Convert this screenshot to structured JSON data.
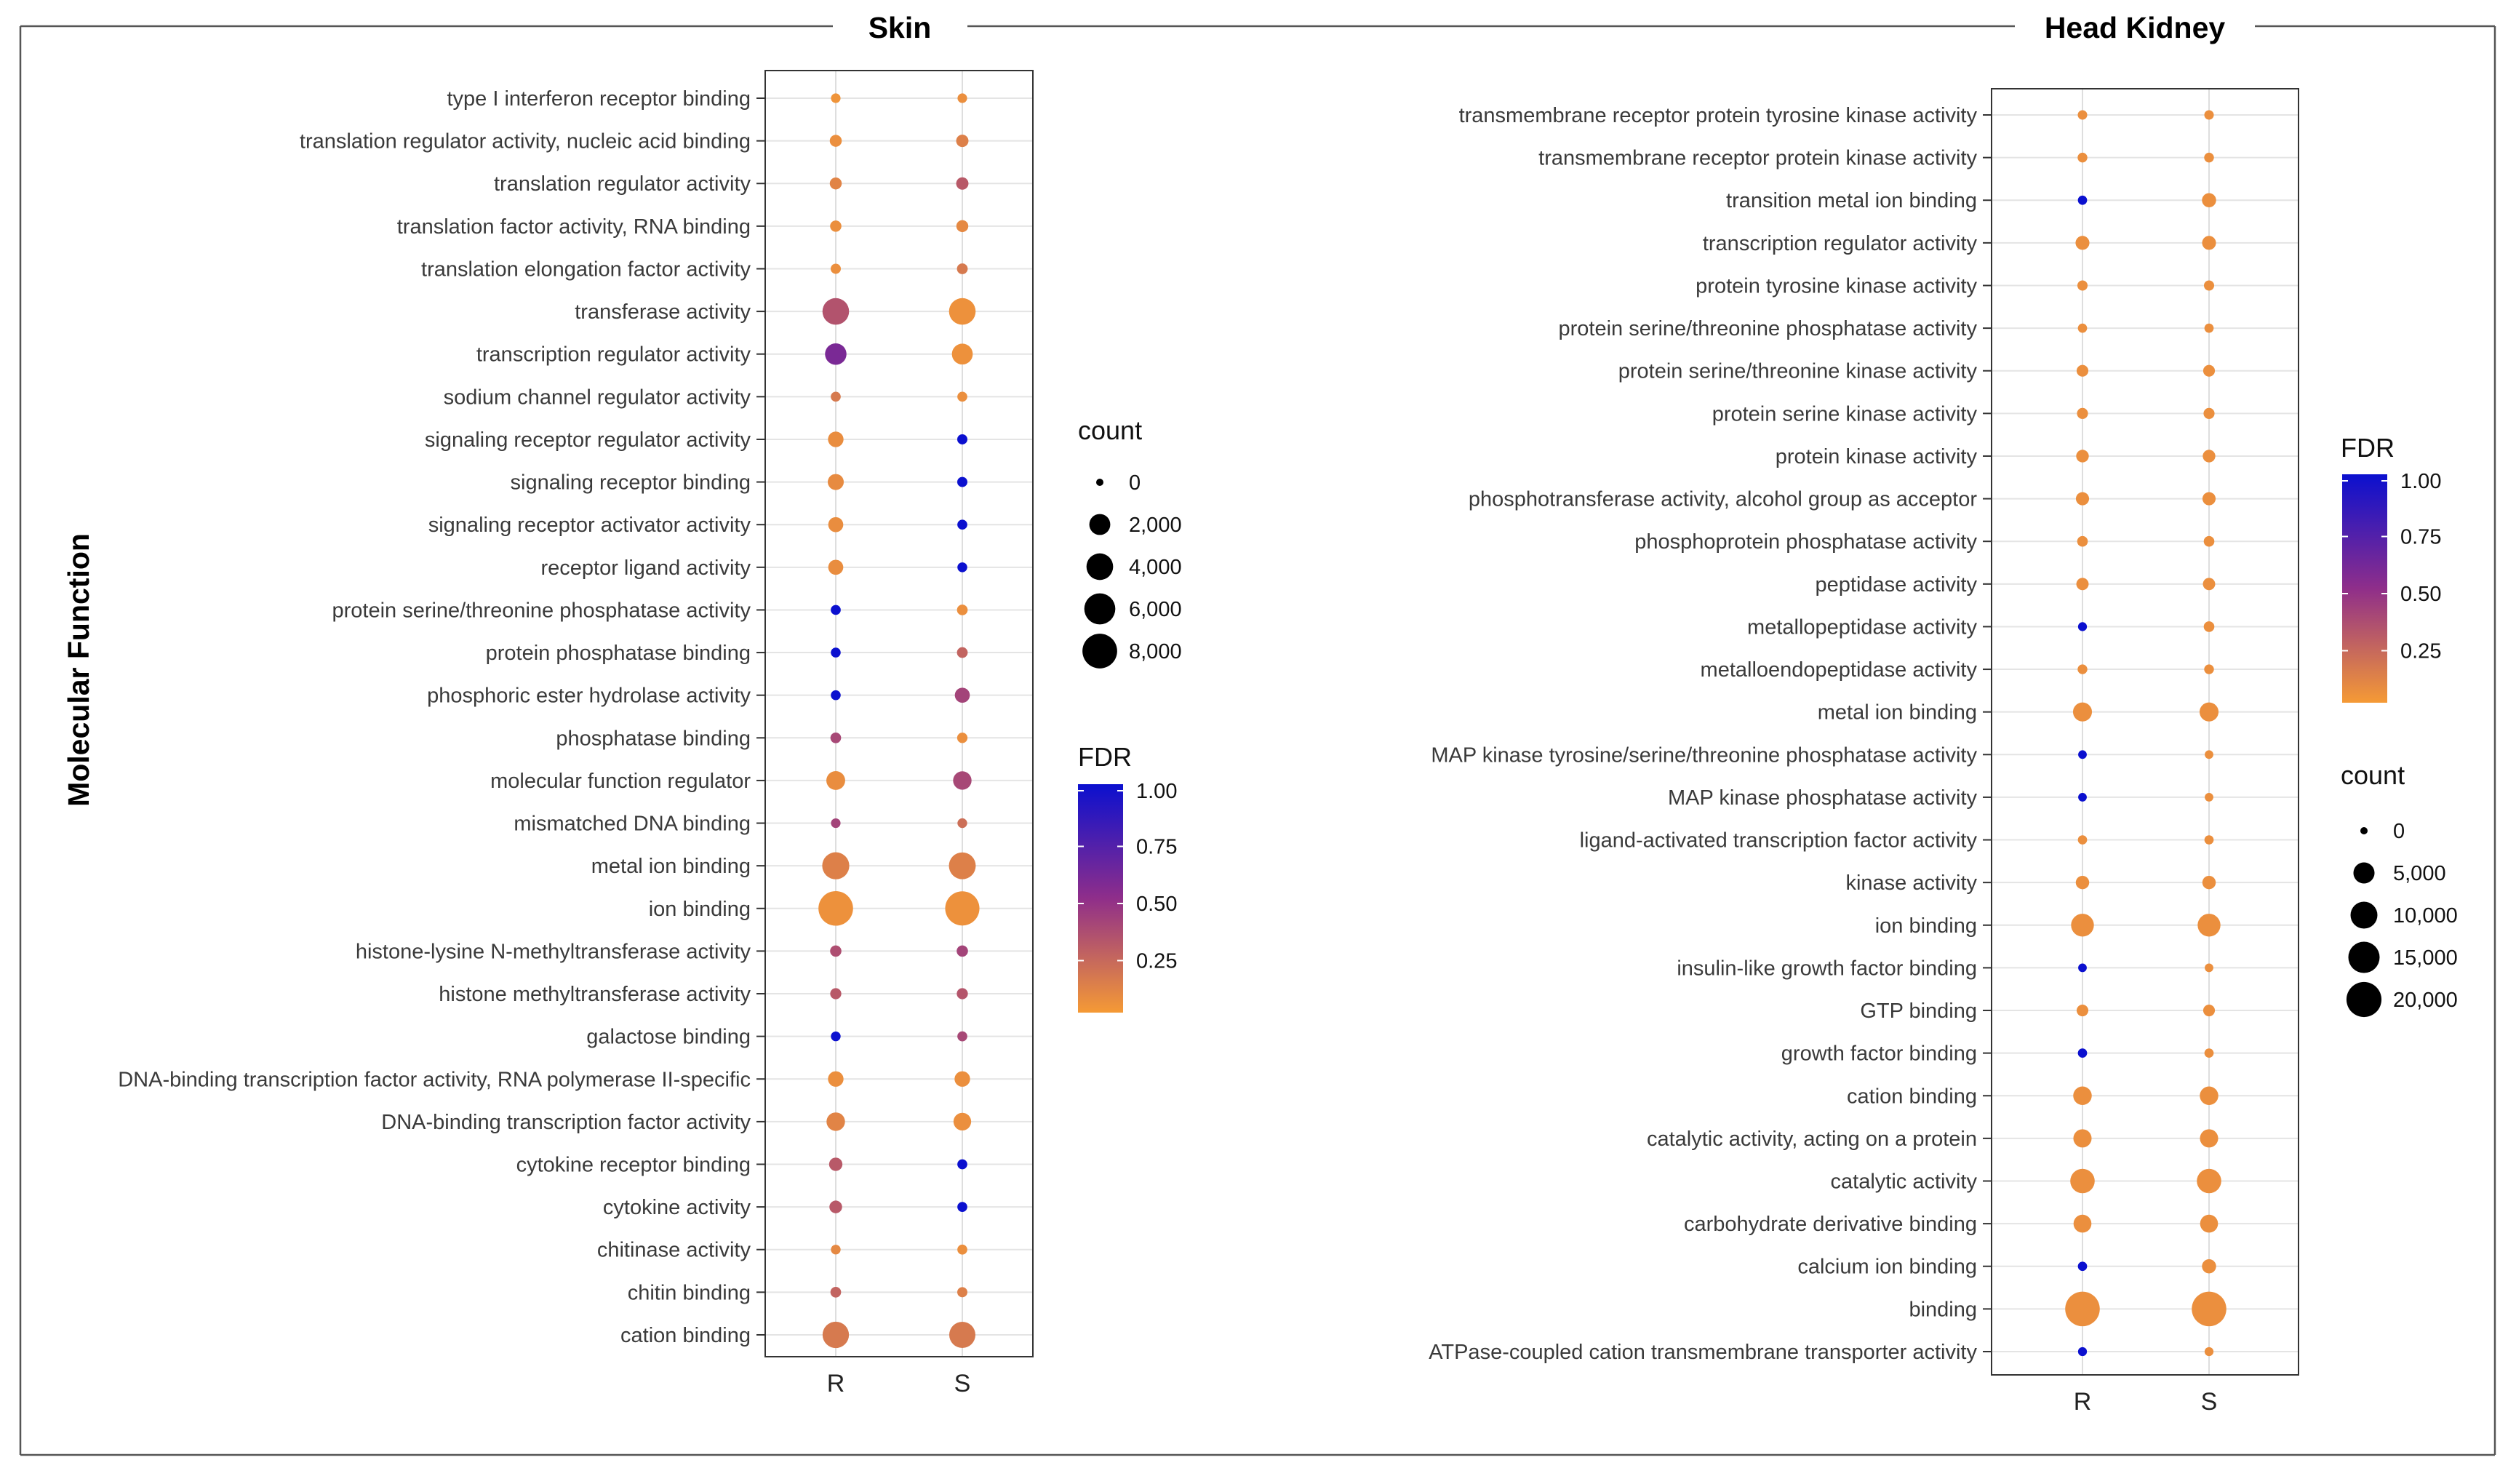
{
  "chart_data": [
    {
      "type": "scatter",
      "panel": "skin",
      "title": "Skin",
      "ylabel": "Molecular Function",
      "x": [
        "R",
        "S"
      ],
      "legend_count": {
        "title": "count",
        "labels": [
          "0",
          "2,000",
          "4,000",
          "6,000",
          "8,000"
        ],
        "values": [
          0,
          2000,
          4000,
          6000,
          8000
        ]
      },
      "legend_fdr": {
        "title": "FDR",
        "labels": [
          "1.00",
          "0.75",
          "0.50",
          "0.25"
        ],
        "values": [
          1.0,
          0.75,
          0.5,
          0.25
        ],
        "color_low": "#f59a35",
        "color_mid": "#8f2e8a",
        "color_high": "#0b10cf"
      },
      "terms": [
        {
          "term": "type I interferon receptor binding",
          "R": {
            "count": 150,
            "fdr": 0.03
          },
          "S": {
            "count": 150,
            "fdr": 0.05
          }
        },
        {
          "term": "translation regulator activity, nucleic acid binding",
          "R": {
            "count": 400,
            "fdr": 0.05
          },
          "S": {
            "count": 450,
            "fdr": 0.12
          }
        },
        {
          "term": "translation regulator activity",
          "R": {
            "count": 400,
            "fdr": 0.1
          },
          "S": {
            "count": 450,
            "fdr": 0.3
          }
        },
        {
          "term": "translation factor activity, RNA binding",
          "R": {
            "count": 320,
            "fdr": 0.05
          },
          "S": {
            "count": 400,
            "fdr": 0.08
          }
        },
        {
          "term": "translation elongation factor activity",
          "R": {
            "count": 200,
            "fdr": 0.05
          },
          "S": {
            "count": 260,
            "fdr": 0.15
          }
        },
        {
          "term": "transferase activity",
          "R": {
            "count": 4600,
            "fdr": 0.33
          },
          "S": {
            "count": 4600,
            "fdr": 0.04
          }
        },
        {
          "term": "transcription regulator activity",
          "R": {
            "count": 2600,
            "fdr": 0.58
          },
          "S": {
            "count": 2400,
            "fdr": 0.04
          }
        },
        {
          "term": "sodium channel regulator activity",
          "R": {
            "count": 180,
            "fdr": 0.15
          },
          "S": {
            "count": 180,
            "fdr": 0.05
          }
        },
        {
          "term": "signaling receptor regulator activity",
          "R": {
            "count": 1000,
            "fdr": 0.06
          },
          "S": {
            "count": 200,
            "fdr": 1.0
          }
        },
        {
          "term": "signaling receptor binding",
          "R": {
            "count": 1100,
            "fdr": 0.07
          },
          "S": {
            "count": 200,
            "fdr": 1.0
          }
        },
        {
          "term": "signaling receptor activator activity",
          "R": {
            "count": 900,
            "fdr": 0.06
          },
          "S": {
            "count": 180,
            "fdr": 1.0
          }
        },
        {
          "term": "receptor ligand activity",
          "R": {
            "count": 900,
            "fdr": 0.06
          },
          "S": {
            "count": 170,
            "fdr": 1.0
          }
        },
        {
          "term": "protein serine/threonine phosphatase activity",
          "R": {
            "count": 180,
            "fdr": 1.0
          },
          "S": {
            "count": 250,
            "fdr": 0.05
          }
        },
        {
          "term": "protein phosphatase binding",
          "R": {
            "count": 170,
            "fdr": 1.0
          },
          "S": {
            "count": 260,
            "fdr": 0.25
          }
        },
        {
          "term": "phosphoric ester hydrolase activity",
          "R": {
            "count": 170,
            "fdr": 1.0
          },
          "S": {
            "count": 900,
            "fdr": 0.4
          }
        },
        {
          "term": "phosphatase binding",
          "R": {
            "count": 250,
            "fdr": 0.38
          },
          "S": {
            "count": 220,
            "fdr": 0.05
          }
        },
        {
          "term": "molecular function regulator",
          "R": {
            "count": 1800,
            "fdr": 0.06
          },
          "S": {
            "count": 1700,
            "fdr": 0.38
          }
        },
        {
          "term": "mismatched DNA binding",
          "R": {
            "count": 150,
            "fdr": 0.4
          },
          "S": {
            "count": 160,
            "fdr": 0.2
          }
        },
        {
          "term": "metal ion binding",
          "R": {
            "count": 4800,
            "fdr": 0.12
          },
          "S": {
            "count": 4700,
            "fdr": 0.12
          }
        },
        {
          "term": "ion binding",
          "R": {
            "count": 8800,
            "fdr": 0.04
          },
          "S": {
            "count": 8600,
            "fdr": 0.04
          }
        },
        {
          "term": "histone-lysine N-methyltransferase activity",
          "R": {
            "count": 320,
            "fdr": 0.35
          },
          "S": {
            "count": 320,
            "fdr": 0.4
          }
        },
        {
          "term": "histone methyltransferase activity",
          "R": {
            "count": 300,
            "fdr": 0.3
          },
          "S": {
            "count": 300,
            "fdr": 0.32
          }
        },
        {
          "term": "galactose binding",
          "R": {
            "count": 160,
            "fdr": 1.0
          },
          "S": {
            "count": 180,
            "fdr": 0.38
          }
        },
        {
          "term": "DNA-binding transcription factor activity, RNA polymerase II-specific",
          "R": {
            "count": 1000,
            "fdr": 0.05
          },
          "S": {
            "count": 1000,
            "fdr": 0.05
          }
        },
        {
          "term": "DNA-binding transcription factor activity",
          "R": {
            "count": 1700,
            "fdr": 0.1
          },
          "S": {
            "count": 1500,
            "fdr": 0.05
          }
        },
        {
          "term": "cytokine receptor binding",
          "R": {
            "count": 600,
            "fdr": 0.3
          },
          "S": {
            "count": 180,
            "fdr": 1.0
          }
        },
        {
          "term": "cytokine activity",
          "R": {
            "count": 500,
            "fdr": 0.3
          },
          "S": {
            "count": 180,
            "fdr": 1.0
          }
        },
        {
          "term": "chitinase activity",
          "R": {
            "count": 160,
            "fdr": 0.08
          },
          "S": {
            "count": 180,
            "fdr": 0.05
          }
        },
        {
          "term": "chitin binding",
          "R": {
            "count": 250,
            "fdr": 0.25
          },
          "S": {
            "count": 200,
            "fdr": 0.12
          }
        },
        {
          "term": "cation binding",
          "R": {
            "count": 4500,
            "fdr": 0.15
          },
          "S": {
            "count": 4400,
            "fdr": 0.15
          }
        }
      ]
    },
    {
      "type": "scatter",
      "panel": "head-kidney",
      "title": "Head Kidney",
      "x": [
        "R",
        "S"
      ],
      "legend_fdr": {
        "title": "FDR",
        "labels": [
          "1.00",
          "0.75",
          "0.50",
          "0.25"
        ],
        "values": [
          1.0,
          0.75,
          0.5,
          0.25
        ],
        "color_low": "#f59a35",
        "color_mid": "#8f2e8a",
        "color_high": "#0b10cf"
      },
      "legend_count": {
        "title": "count",
        "labels": [
          "0",
          "5,000",
          "10,000",
          "15,000",
          "20,000"
        ],
        "values": [
          0,
          5000,
          10000,
          15000,
          20000
        ]
      },
      "terms": [
        {
          "term": "transmembrane receptor protein tyrosine kinase activity",
          "R": {
            "count": 350,
            "fdr": 0.05
          },
          "S": {
            "count": 350,
            "fdr": 0.05
          }
        },
        {
          "term": "transmembrane receptor protein kinase activity",
          "R": {
            "count": 400,
            "fdr": 0.05
          },
          "S": {
            "count": 400,
            "fdr": 0.05
          }
        },
        {
          "term": "transition metal ion binding",
          "R": {
            "count": 300,
            "fdr": 1.0
          },
          "S": {
            "count": 1800,
            "fdr": 0.05
          }
        },
        {
          "term": "transcription regulator activity",
          "R": {
            "count": 1700,
            "fdr": 0.05
          },
          "S": {
            "count": 1700,
            "fdr": 0.05
          }
        },
        {
          "term": "protein tyrosine kinase activity",
          "R": {
            "count": 500,
            "fdr": 0.05
          },
          "S": {
            "count": 500,
            "fdr": 0.05
          }
        },
        {
          "term": "protein serine/threonine phosphatase activity",
          "R": {
            "count": 300,
            "fdr": 0.05
          },
          "S": {
            "count": 300,
            "fdr": 0.05
          }
        },
        {
          "term": "protein serine/threonine kinase activity",
          "R": {
            "count": 900,
            "fdr": 0.05
          },
          "S": {
            "count": 900,
            "fdr": 0.05
          }
        },
        {
          "term": "protein serine kinase activity",
          "R": {
            "count": 700,
            "fdr": 0.05
          },
          "S": {
            "count": 700,
            "fdr": 0.05
          }
        },
        {
          "term": "protein kinase activity",
          "R": {
            "count": 1200,
            "fdr": 0.05
          },
          "S": {
            "count": 1200,
            "fdr": 0.05
          }
        },
        {
          "term": "phosphotransferase activity, alcohol group as acceptor",
          "R": {
            "count": 1400,
            "fdr": 0.05
          },
          "S": {
            "count": 1400,
            "fdr": 0.05
          }
        },
        {
          "term": "phosphoprotein phosphatase activity",
          "R": {
            "count": 600,
            "fdr": 0.05
          },
          "S": {
            "count": 600,
            "fdr": 0.05
          }
        },
        {
          "term": "peptidase activity",
          "R": {
            "count": 1100,
            "fdr": 0.05
          },
          "S": {
            "count": 1100,
            "fdr": 0.05
          }
        },
        {
          "term": "metallopeptidase activity",
          "R": {
            "count": 250,
            "fdr": 1.0
          },
          "S": {
            "count": 600,
            "fdr": 0.05
          }
        },
        {
          "term": "metalloendopeptidase activity",
          "R": {
            "count": 400,
            "fdr": 0.05
          },
          "S": {
            "count": 400,
            "fdr": 0.05
          }
        },
        {
          "term": "metal ion binding",
          "R": {
            "count": 4500,
            "fdr": 0.05
          },
          "S": {
            "count": 4500,
            "fdr": 0.05
          }
        },
        {
          "term": "MAP kinase tyrosine/serine/threonine phosphatase activity",
          "R": {
            "count": 200,
            "fdr": 1.0
          },
          "S": {
            "count": 200,
            "fdr": 0.05
          }
        },
        {
          "term": "MAP kinase phosphatase activity",
          "R": {
            "count": 200,
            "fdr": 1.0
          },
          "S": {
            "count": 200,
            "fdr": 0.05
          }
        },
        {
          "term": "ligand-activated transcription factor activity",
          "R": {
            "count": 300,
            "fdr": 0.05
          },
          "S": {
            "count": 300,
            "fdr": 0.05
          }
        },
        {
          "term": "kinase activity",
          "R": {
            "count": 1500,
            "fdr": 0.05
          },
          "S": {
            "count": 1500,
            "fdr": 0.05
          }
        },
        {
          "term": "ion binding",
          "R": {
            "count": 7500,
            "fdr": 0.05
          },
          "S": {
            "count": 7500,
            "fdr": 0.05
          }
        },
        {
          "term": "insulin-like growth factor binding",
          "R": {
            "count": 200,
            "fdr": 1.0
          },
          "S": {
            "count": 200,
            "fdr": 0.05
          }
        },
        {
          "term": "GTP binding",
          "R": {
            "count": 900,
            "fdr": 0.05
          },
          "S": {
            "count": 900,
            "fdr": 0.05
          }
        },
        {
          "term": "growth factor binding",
          "R": {
            "count": 300,
            "fdr": 1.0
          },
          "S": {
            "count": 300,
            "fdr": 0.05
          }
        },
        {
          "term": "cation binding",
          "R": {
            "count": 4200,
            "fdr": 0.05
          },
          "S": {
            "count": 4200,
            "fdr": 0.05
          }
        },
        {
          "term": "catalytic activity, acting on a protein",
          "R": {
            "count": 4000,
            "fdr": 0.05
          },
          "S": {
            "count": 4000,
            "fdr": 0.05
          }
        },
        {
          "term": "catalytic activity",
          "R": {
            "count": 9000,
            "fdr": 0.05
          },
          "S": {
            "count": 9000,
            "fdr": 0.05
          }
        },
        {
          "term": "carbohydrate derivative binding",
          "R": {
            "count": 3800,
            "fdr": 0.05
          },
          "S": {
            "count": 3800,
            "fdr": 0.05
          }
        },
        {
          "term": "calcium ion binding",
          "R": {
            "count": 300,
            "fdr": 1.0
          },
          "S": {
            "count": 1800,
            "fdr": 0.05
          }
        },
        {
          "term": "binding",
          "R": {
            "count": 21500,
            "fdr": 0.05
          },
          "S": {
            "count": 21500,
            "fdr": 0.05
          }
        },
        {
          "term": "ATPase-coupled cation transmembrane transporter activity",
          "R": {
            "count": 250,
            "fdr": 1.0
          },
          "S": {
            "count": 250,
            "fdr": 0.05
          }
        }
      ]
    }
  ]
}
